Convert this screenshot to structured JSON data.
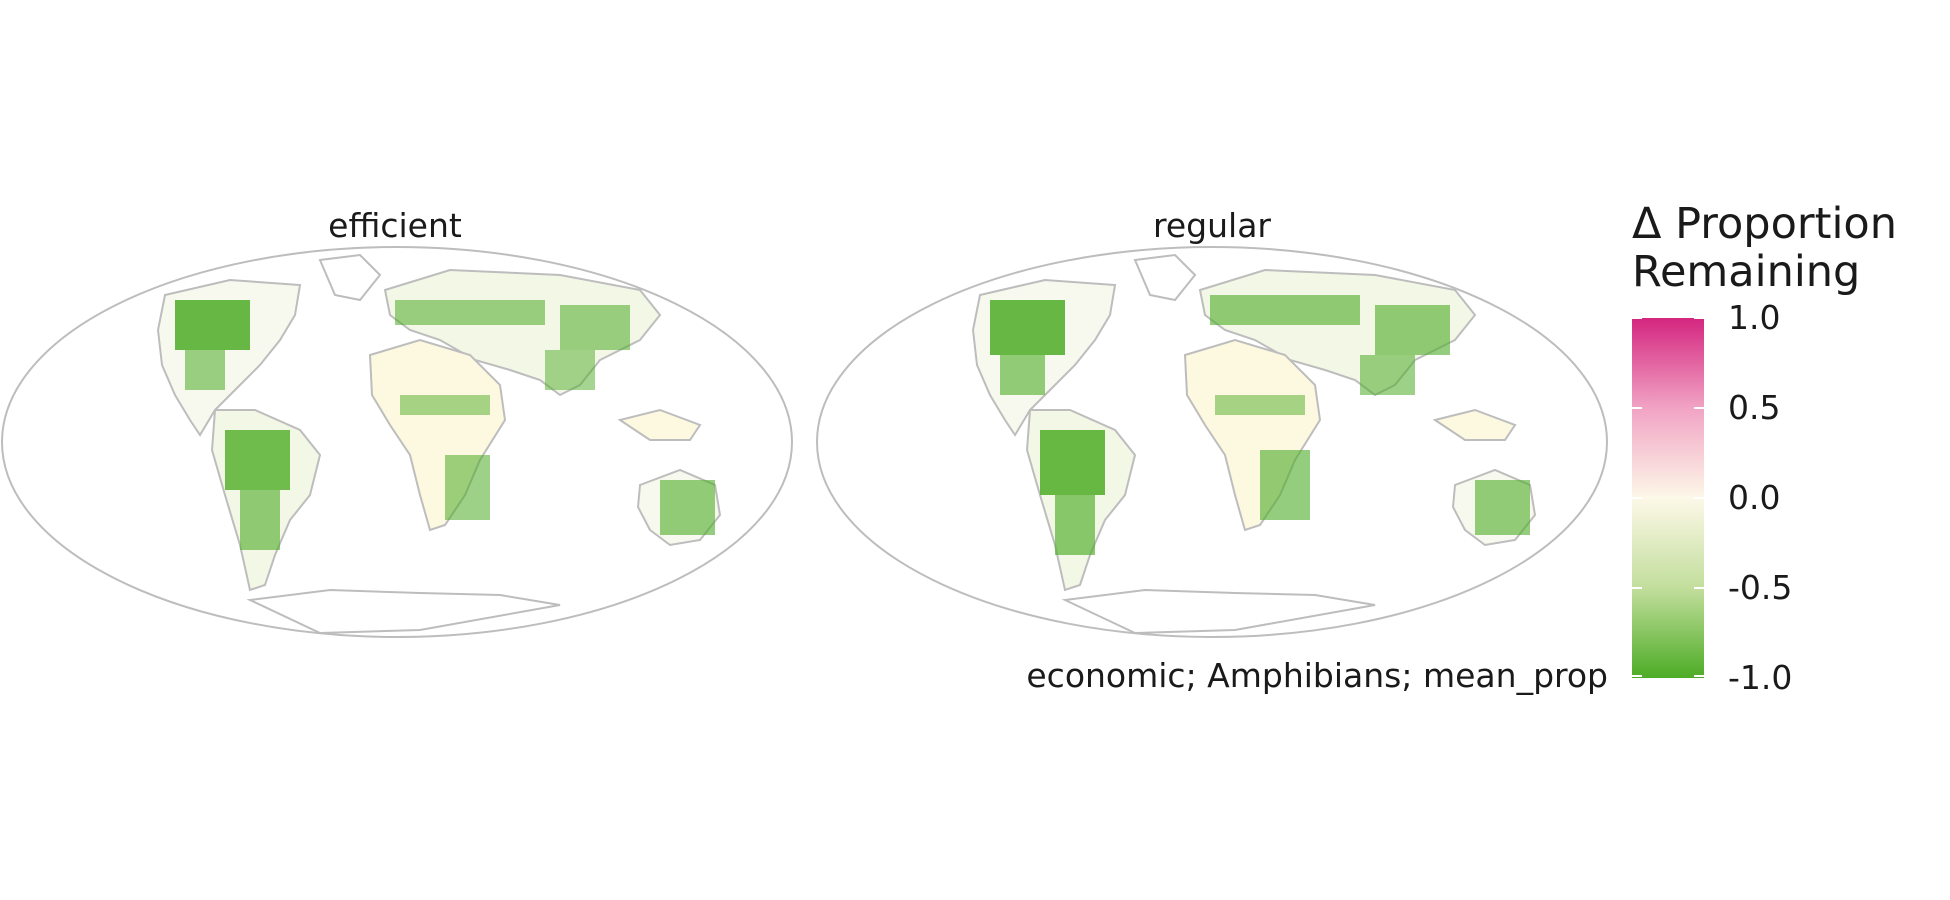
{
  "panels": [
    {
      "title": "efficient"
    },
    {
      "title": "regular"
    }
  ],
  "legend": {
    "title_line1": "Δ Proportion",
    "title_line2": "Remaining",
    "ticks": [
      "1.0",
      "0.5",
      "0.0",
      "-0.5",
      "-1.0"
    ],
    "colors": {
      "high": "#d4267f",
      "mid": "#fdf8e8",
      "low": "#4dac26"
    }
  },
  "caption": "economic; Amphibians; mean_prop"
}
